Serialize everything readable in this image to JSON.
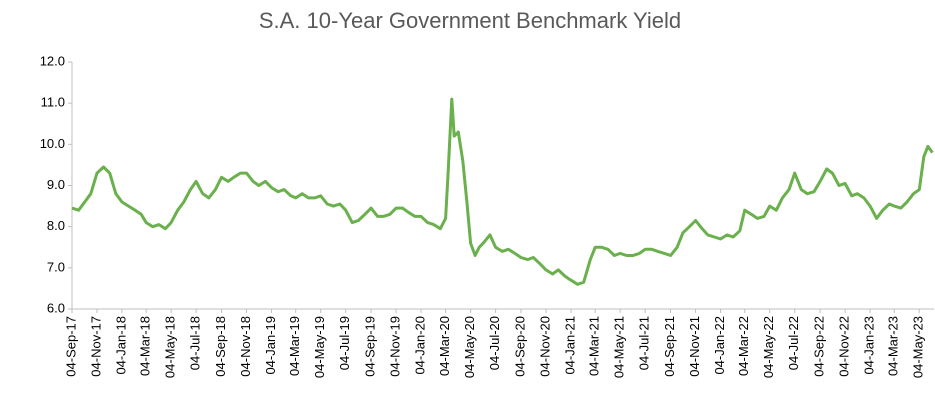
{
  "chart_data": {
    "type": "line",
    "title": "S.A. 10-Year Government Benchmark Yield",
    "xlim": [
      "2017-09-04",
      "2023-06-09"
    ],
    "ylim": [
      6,
      12
    ],
    "yticks": [
      {
        "value": 6,
        "label": "6.0"
      },
      {
        "value": 7,
        "label": "7.0"
      },
      {
        "value": 8,
        "label": "8.0"
      },
      {
        "value": 9,
        "label": "9.0"
      },
      {
        "value": 10,
        "label": "10.0"
      },
      {
        "value": 11,
        "label": "11.0"
      },
      {
        "value": 12,
        "label": "12.0"
      }
    ],
    "xticks": [
      {
        "value": "2017-09-04",
        "label": "04-Sep-17"
      },
      {
        "value": "2017-11-04",
        "label": "04-Nov-17"
      },
      {
        "value": "2018-01-04",
        "label": "04-Jan-18"
      },
      {
        "value": "2018-03-04",
        "label": "04-Mar-18"
      },
      {
        "value": "2018-05-04",
        "label": "04-May-18"
      },
      {
        "value": "2018-07-04",
        "label": "04-Jul-18"
      },
      {
        "value": "2018-09-04",
        "label": "04-Sep-18"
      },
      {
        "value": "2018-11-04",
        "label": "04-Nov-18"
      },
      {
        "value": "2019-01-04",
        "label": "04-Jan-19"
      },
      {
        "value": "2019-03-04",
        "label": "04-Mar-19"
      },
      {
        "value": "2019-05-04",
        "label": "04-May-19"
      },
      {
        "value": "2019-07-04",
        "label": "04-Jul-19"
      },
      {
        "value": "2019-09-04",
        "label": "04-Sep-19"
      },
      {
        "value": "2019-11-04",
        "label": "04-Nov-19"
      },
      {
        "value": "2020-01-04",
        "label": "04-Jan-20"
      },
      {
        "value": "2020-03-04",
        "label": "04-Mar-20"
      },
      {
        "value": "2020-05-04",
        "label": "04-May-20"
      },
      {
        "value": "2020-07-04",
        "label": "04-Jul-20"
      },
      {
        "value": "2020-09-04",
        "label": "04-Sep-20"
      },
      {
        "value": "2020-11-04",
        "label": "04-Nov-20"
      },
      {
        "value": "2021-01-04",
        "label": "04-Jan-21"
      },
      {
        "value": "2021-03-04",
        "label": "04-Mar-21"
      },
      {
        "value": "2021-05-04",
        "label": "04-May-21"
      },
      {
        "value": "2021-07-04",
        "label": "04-Jul-21"
      },
      {
        "value": "2021-09-04",
        "label": "04-Sep-21"
      },
      {
        "value": "2021-11-04",
        "label": "04-Nov-21"
      },
      {
        "value": "2022-01-04",
        "label": "04-Jan-22"
      },
      {
        "value": "2022-03-04",
        "label": "04-Mar-22"
      },
      {
        "value": "2022-05-04",
        "label": "04-May-22"
      },
      {
        "value": "2022-07-04",
        "label": "04-Jul-22"
      },
      {
        "value": "2022-09-04",
        "label": "04-Sep-22"
      },
      {
        "value": "2022-11-04",
        "label": "04-Nov-22"
      },
      {
        "value": "2023-01-04",
        "label": "04-Jan-23"
      },
      {
        "value": "2023-03-04",
        "label": "04-Mar-23"
      },
      {
        "value": "2023-05-04",
        "label": "04-May-23"
      }
    ],
    "grid": false,
    "series": [
      {
        "color": "#6ab04c",
        "x": [
          "2017-09-04",
          "2017-09-20",
          "2017-10-05",
          "2017-10-20",
          "2017-11-04",
          "2017-11-20",
          "2017-12-05",
          "2017-12-20",
          "2018-01-04",
          "2018-01-20",
          "2018-02-05",
          "2018-02-20",
          "2018-03-04",
          "2018-03-20",
          "2018-04-04",
          "2018-04-20",
          "2018-05-04",
          "2018-05-20",
          "2018-06-04",
          "2018-06-20",
          "2018-07-04",
          "2018-07-20",
          "2018-08-04",
          "2018-08-20",
          "2018-09-04",
          "2018-09-20",
          "2018-10-04",
          "2018-10-20",
          "2018-11-04",
          "2018-11-20",
          "2018-12-04",
          "2018-12-20",
          "2019-01-04",
          "2019-01-20",
          "2019-02-04",
          "2019-02-20",
          "2019-03-04",
          "2019-03-20",
          "2019-04-04",
          "2019-04-20",
          "2019-05-04",
          "2019-05-20",
          "2019-06-04",
          "2019-06-20",
          "2019-07-04",
          "2019-07-20",
          "2019-08-04",
          "2019-08-20",
          "2019-09-04",
          "2019-09-20",
          "2019-10-04",
          "2019-10-20",
          "2019-11-04",
          "2019-11-20",
          "2019-12-04",
          "2019-12-20",
          "2020-01-04",
          "2020-01-20",
          "2020-02-04",
          "2020-02-20",
          "2020-03-04",
          "2020-03-10",
          "2020-03-19",
          "2020-03-25",
          "2020-04-04",
          "2020-04-15",
          "2020-04-25",
          "2020-05-04",
          "2020-05-15",
          "2020-05-25",
          "2020-06-04",
          "2020-06-20",
          "2020-07-04",
          "2020-07-20",
          "2020-08-04",
          "2020-08-20",
          "2020-09-04",
          "2020-09-20",
          "2020-10-04",
          "2020-10-20",
          "2020-11-04",
          "2020-11-20",
          "2020-12-04",
          "2020-12-20",
          "2021-01-04",
          "2021-01-20",
          "2021-02-04",
          "2021-02-20",
          "2021-03-04",
          "2021-03-20",
          "2021-04-04",
          "2021-04-20",
          "2021-05-04",
          "2021-05-20",
          "2021-06-04",
          "2021-06-20",
          "2021-07-04",
          "2021-07-20",
          "2021-08-04",
          "2021-08-20",
          "2021-09-04",
          "2021-09-20",
          "2021-10-04",
          "2021-10-20",
          "2021-11-04",
          "2021-11-20",
          "2021-12-04",
          "2021-12-20",
          "2022-01-04",
          "2022-01-20",
          "2022-02-04",
          "2022-02-20",
          "2022-03-04",
          "2022-03-20",
          "2022-04-04",
          "2022-04-20",
          "2022-05-04",
          "2022-05-20",
          "2022-06-04",
          "2022-06-20",
          "2022-07-04",
          "2022-07-20",
          "2022-08-04",
          "2022-08-20",
          "2022-09-04",
          "2022-09-20",
          "2022-10-04",
          "2022-10-20",
          "2022-11-04",
          "2022-11-20",
          "2022-12-04",
          "2022-12-20",
          "2023-01-04",
          "2023-01-20",
          "2023-02-04",
          "2023-02-20",
          "2023-03-04",
          "2023-03-20",
          "2023-04-04",
          "2023-04-20",
          "2023-05-04",
          "2023-05-15",
          "2023-05-25",
          "2023-06-05"
        ],
        "values": [
          8.45,
          8.4,
          8.6,
          8.8,
          9.3,
          9.45,
          9.3,
          8.8,
          8.6,
          8.5,
          8.4,
          8.3,
          8.1,
          8.0,
          8.05,
          7.95,
          8.1,
          8.4,
          8.6,
          8.9,
          9.1,
          8.8,
          8.7,
          8.9,
          9.2,
          9.1,
          9.2,
          9.3,
          9.3,
          9.1,
          9.0,
          9.1,
          8.95,
          8.85,
          8.9,
          8.75,
          8.7,
          8.8,
          8.7,
          8.7,
          8.75,
          8.55,
          8.5,
          8.55,
          8.4,
          8.1,
          8.15,
          8.3,
          8.45,
          8.25,
          8.25,
          8.3,
          8.45,
          8.45,
          8.35,
          8.25,
          8.25,
          8.1,
          8.05,
          7.95,
          8.2,
          9.3,
          11.1,
          10.2,
          10.3,
          9.6,
          8.6,
          7.6,
          7.3,
          7.5,
          7.6,
          7.8,
          7.5,
          7.4,
          7.45,
          7.35,
          7.25,
          7.2,
          7.25,
          7.1,
          6.95,
          6.85,
          6.95,
          6.8,
          6.7,
          6.6,
          6.65,
          7.2,
          7.5,
          7.5,
          7.45,
          7.3,
          7.35,
          7.3,
          7.3,
          7.35,
          7.45,
          7.45,
          7.4,
          7.35,
          7.3,
          7.5,
          7.85,
          8.0,
          8.15,
          7.95,
          7.8,
          7.75,
          7.7,
          7.8,
          7.75,
          7.9,
          8.4,
          8.3,
          8.2,
          8.25,
          8.5,
          8.4,
          8.7,
          8.9,
          9.3,
          8.9,
          8.8,
          8.85,
          9.1,
          9.4,
          9.3,
          9.0,
          9.05,
          8.75,
          8.8,
          8.7,
          8.5,
          8.2,
          8.4,
          8.55,
          8.5,
          8.45,
          8.6,
          8.8,
          8.9,
          9.7,
          9.95,
          9.8
        ]
      }
    ]
  }
}
